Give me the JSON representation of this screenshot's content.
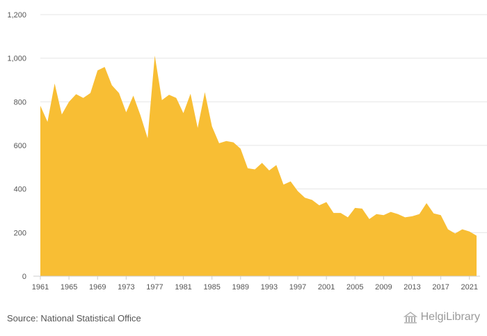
{
  "chart_data": {
    "type": "area",
    "title": "",
    "xlabel": "",
    "ylabel": "",
    "ylim": [
      0,
      1200
    ],
    "y_ticks": [
      "0",
      "200",
      "400",
      "600",
      "800",
      "1,000",
      "1,200"
    ],
    "x_ticks": [
      "1961",
      "1965",
      "1969",
      "1973",
      "1977",
      "1981",
      "1985",
      "1989",
      "1993",
      "1997",
      "2001",
      "2005",
      "2009",
      "2013",
      "2017",
      "2021"
    ],
    "grid": true,
    "colors": {
      "fill": "#F8BE34",
      "grid": "#e6e6e6",
      "axis": "#cccccc"
    },
    "x": [
      1961,
      1962,
      1963,
      1964,
      1965,
      1966,
      1967,
      1968,
      1969,
      1970,
      1971,
      1972,
      1973,
      1974,
      1975,
      1976,
      1977,
      1978,
      1979,
      1980,
      1981,
      1982,
      1983,
      1984,
      1985,
      1986,
      1987,
      1988,
      1989,
      1990,
      1991,
      1992,
      1993,
      1994,
      1995,
      1996,
      1997,
      1998,
      1999,
      2000,
      2001,
      2002,
      2003,
      2004,
      2005,
      2006,
      2007,
      2008,
      2009,
      2010,
      2011,
      2012,
      2013,
      2014,
      2015,
      2016,
      2017,
      2018,
      2019,
      2020,
      2021,
      2022
    ],
    "values": [
      782,
      708,
      884,
      742,
      800,
      835,
      818,
      840,
      944,
      960,
      876,
      840,
      752,
      828,
      738,
      633,
      1012,
      808,
      832,
      818,
      748,
      837,
      680,
      844,
      687,
      610,
      620,
      614,
      585,
      495,
      490,
      520,
      485,
      510,
      420,
      435,
      390,
      360,
      350,
      325,
      340,
      290,
      290,
      270,
      313,
      310,
      262,
      285,
      280,
      295,
      285,
      270,
      275,
      285,
      335,
      288,
      280,
      215,
      196,
      215,
      205,
      186
    ]
  },
  "footer": {
    "source": "Source: National Statistical Office",
    "brand": "HelgiLibrary",
    "brand_icon": "library-building-icon"
  }
}
